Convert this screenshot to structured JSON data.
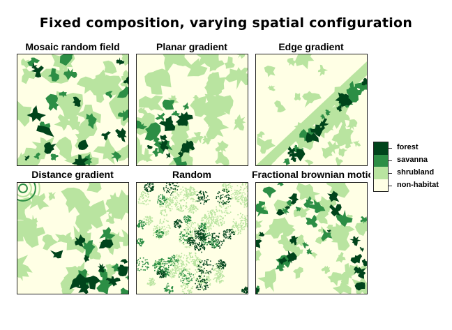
{
  "title": "Fixed composition, varying spatial configuration",
  "panels": [
    {
      "title": "Mosaic random field",
      "pattern": "mosaic"
    },
    {
      "title": "Planar gradient",
      "pattern": "planar"
    },
    {
      "title": "Edge gradient",
      "pattern": "edge"
    },
    {
      "title": "Distance gradient",
      "pattern": "distance"
    },
    {
      "title": "Random",
      "pattern": "random"
    },
    {
      "title": "Fractional brownian motion",
      "pattern": "fbm"
    }
  ],
  "legend": [
    {
      "label": "forest",
      "color": "#00441B"
    },
    {
      "label": "savanna",
      "color": "#2C8E45"
    },
    {
      "label": "shrubland",
      "color": "#B9E4A0"
    },
    {
      "label": "non-habitat",
      "color": "#FFFFE5"
    }
  ]
}
